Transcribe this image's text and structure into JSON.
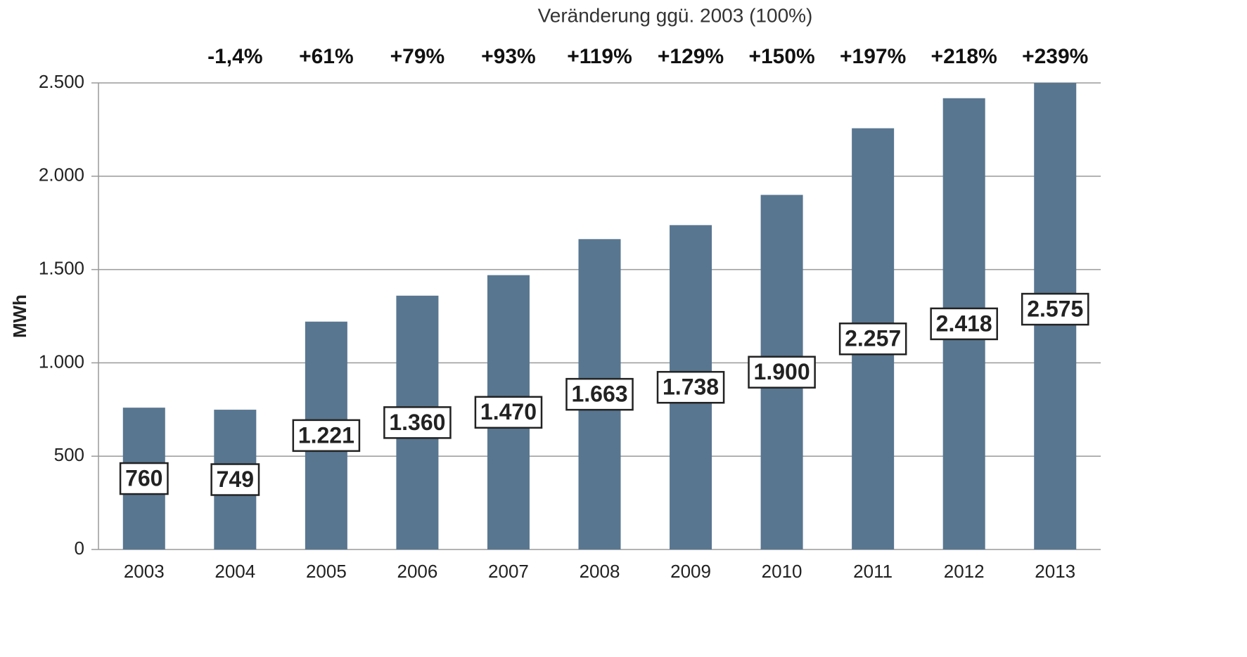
{
  "chart_data": {
    "type": "bar",
    "y_label": "MWh",
    "categories": [
      "2003",
      "2004",
      "2005",
      "2006",
      "2007",
      "2008",
      "2009",
      "2010",
      "2011",
      "2012",
      "2013"
    ],
    "values": [
      760,
      749,
      1221,
      1360,
      1470,
      1663,
      1738,
      1900,
      2257,
      2418,
      2575
    ],
    "value_labels": [
      "760",
      "749",
      "1.221",
      "1.360",
      "1.470",
      "1.663",
      "1.738",
      "1.900",
      "2.257",
      "2.418",
      "2.575"
    ],
    "color": "#587690",
    "ylim": [
      0,
      2500
    ],
    "yticks": [
      0,
      500,
      {
        "value": 1000,
        "label": "1.000"
      },
      {
        "value": 1500,
        "label": "1.500"
      },
      {
        "value": 2000,
        "label": "2.000"
      },
      {
        "value": 2500,
        "label": "2.500"
      }
    ],
    "grid": true,
    "annotations": {
      "title": "Veränderung ggü. 2003 (100%)",
      "labels": [
        "-1,4%",
        "+61%",
        "+79%",
        "+93%",
        "+119%",
        "+129%",
        "+150%",
        "+197%",
        "+218%",
        "+239%"
      ]
    }
  }
}
